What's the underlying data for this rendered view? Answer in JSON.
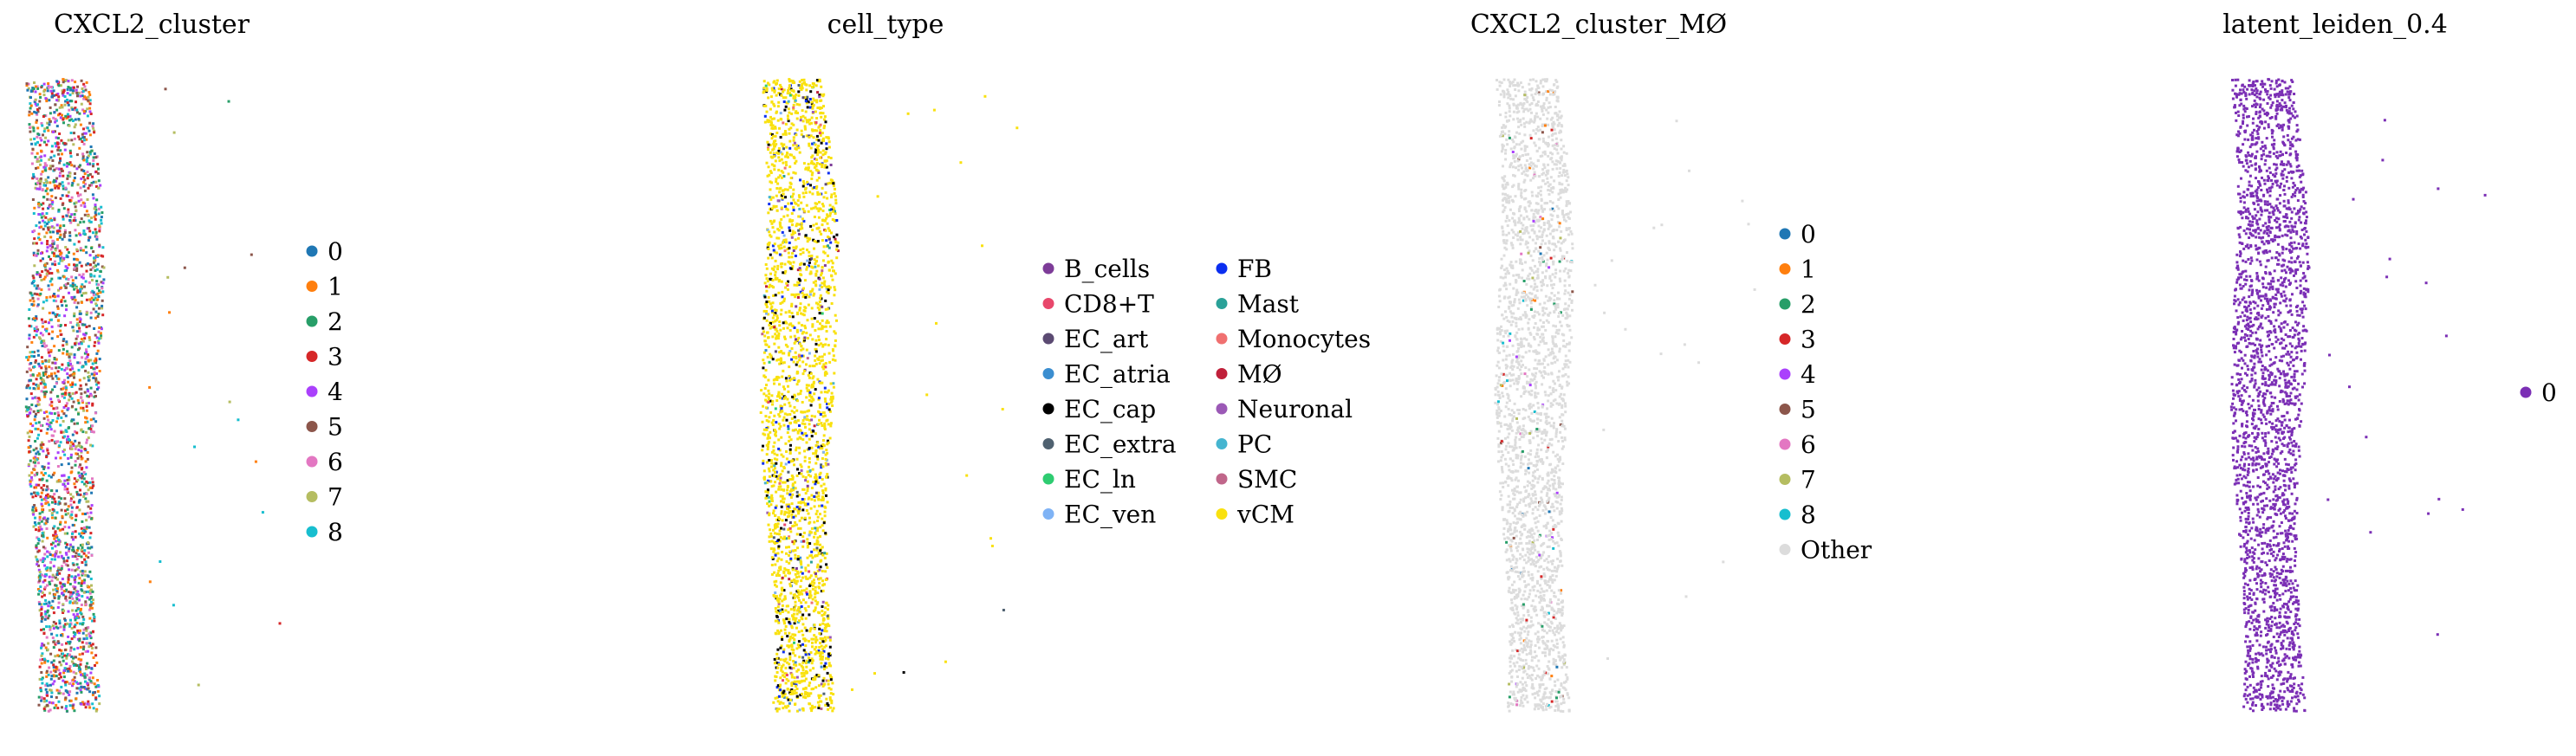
{
  "chart_data": [
    {
      "type": "scatter",
      "title": "CXCL2_cluster",
      "xlabel": "",
      "ylabel": "",
      "grid": false,
      "legend_position": "right",
      "legend": [
        {
          "label": "0",
          "color": "#1f77b4"
        },
        {
          "label": "1",
          "color": "#ff7f0e"
        },
        {
          "label": "2",
          "color": "#279e68"
        },
        {
          "label": "3",
          "color": "#d62728"
        },
        {
          "label": "4",
          "color": "#aa40fc"
        },
        {
          "label": "5",
          "color": "#8c564b"
        },
        {
          "label": "6",
          "color": "#e377c2"
        },
        {
          "label": "7",
          "color": "#b5bd61"
        },
        {
          "label": "8",
          "color": "#17becf"
        }
      ]
    },
    {
      "type": "scatter",
      "title": "cell_type",
      "xlabel": "",
      "ylabel": "",
      "grid": false,
      "legend_position": "right",
      "legend": [
        {
          "label": "B_cells",
          "color": "#7d3c98"
        },
        {
          "label": "CD8+T",
          "color": "#e8476b"
        },
        {
          "label": "EC_art",
          "color": "#5b4a72"
        },
        {
          "label": "EC_atria",
          "color": "#3b8ed0"
        },
        {
          "label": "EC_cap",
          "color": "#000000"
        },
        {
          "label": "EC_extra",
          "color": "#4f6170"
        },
        {
          "label": "EC_ln",
          "color": "#2ecc71"
        },
        {
          "label": "EC_ven",
          "color": "#7fb3f5"
        },
        {
          "label": "FB",
          "color": "#0b2ef0"
        },
        {
          "label": "Mast",
          "color": "#2aa198"
        },
        {
          "label": "Monocytes",
          "color": "#f07070"
        },
        {
          "label": "MØ",
          "color": "#c0203a"
        },
        {
          "label": "Neuronal",
          "color": "#9b59b6"
        },
        {
          "label": "PC",
          "color": "#45b5d0"
        },
        {
          "label": "SMC",
          "color": "#c0668a"
        },
        {
          "label": "vCM",
          "color": "#f9e10f"
        }
      ]
    },
    {
      "type": "scatter",
      "title": "CXCL2_cluster_MØ",
      "xlabel": "",
      "ylabel": "",
      "grid": false,
      "legend_position": "right",
      "legend": [
        {
          "label": "0",
          "color": "#1f77b4"
        },
        {
          "label": "1",
          "color": "#ff7f0e"
        },
        {
          "label": "2",
          "color": "#279e68"
        },
        {
          "label": "3",
          "color": "#d62728"
        },
        {
          "label": "4",
          "color": "#aa40fc"
        },
        {
          "label": "5",
          "color": "#8c564b"
        },
        {
          "label": "6",
          "color": "#e377c2"
        },
        {
          "label": "7",
          "color": "#b5bd61"
        },
        {
          "label": "8",
          "color": "#17becf"
        },
        {
          "label": "Other",
          "color": "#dcdcdc"
        }
      ]
    },
    {
      "type": "scatter",
      "title": "latent_leiden_0.4",
      "xlabel": "",
      "ylabel": "",
      "grid": false,
      "legend_position": "right",
      "legend": [
        {
          "label": "0",
          "color": "#7b2fb5"
        }
      ]
    }
  ]
}
